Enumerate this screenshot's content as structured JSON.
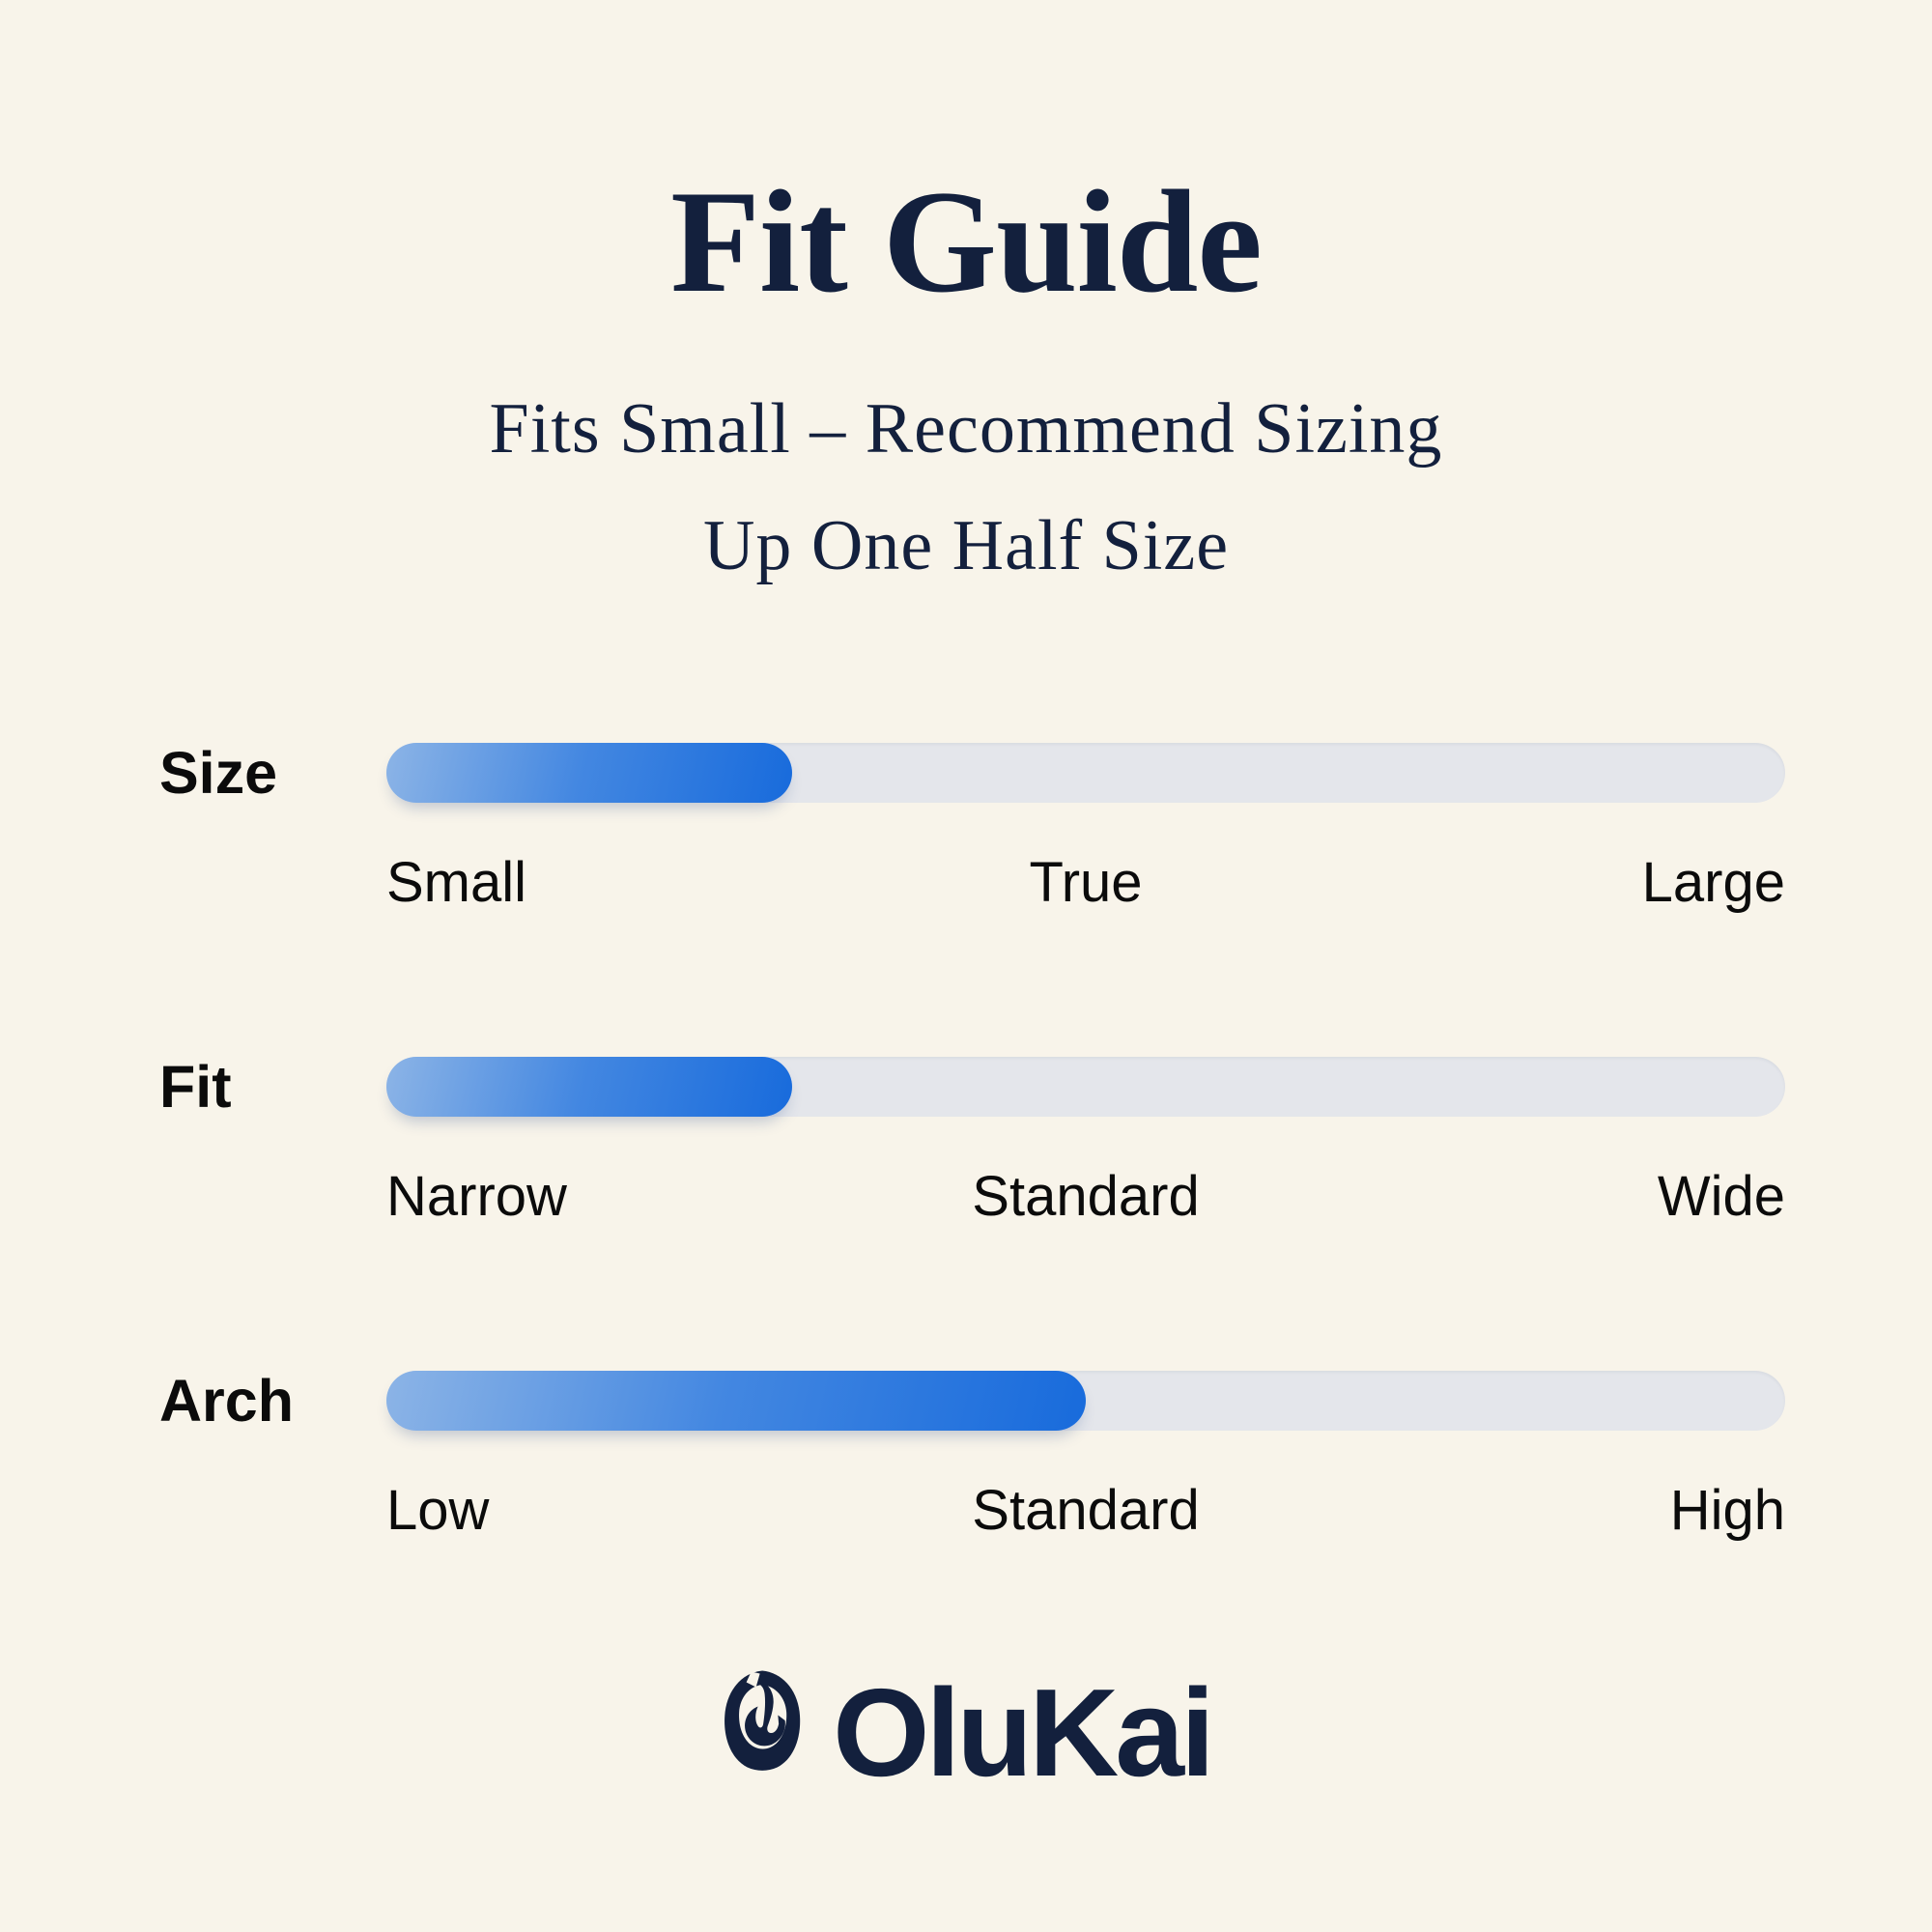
{
  "title": "Fit Guide",
  "subtitle": {
    "line1": "Fits Small – Recommend Sizing",
    "line2": "Up One Half Size"
  },
  "sliders": [
    {
      "label": "Size",
      "fill_percent": 29,
      "scale": {
        "left": "Small",
        "center": "True",
        "right": "Large"
      }
    },
    {
      "label": "Fit",
      "fill_percent": 29,
      "scale": {
        "left": "Narrow",
        "center": "Standard",
        "right": "Wide"
      }
    },
    {
      "label": "Arch",
      "fill_percent": 50,
      "scale": {
        "left": "Low",
        "center": "Standard",
        "right": "High"
      }
    }
  ],
  "logo": {
    "brand": "OluKai",
    "icon": "fish-hook-icon"
  },
  "colors": {
    "background": "#F8F4EA",
    "navy": "#13203D",
    "label_ink": "#0B0B0B",
    "track": "#E4E6EB",
    "fill_gradient_start": "#8CB4E6",
    "fill_gradient_mid": "#4387E1",
    "fill_gradient_end": "#186BDC"
  },
  "chart_data": {
    "type": "bar",
    "title": "Fit Guide",
    "subtitle": "Fits Small – Recommend Sizing Up One Half Size",
    "categories": [
      "Size",
      "Fit",
      "Arch"
    ],
    "values": [
      0.29,
      0.29,
      0.5
    ],
    "value_meaning": "fill fraction of slider track from left end (0) to right end (1)",
    "scales": [
      [
        "Small",
        "True",
        "Large"
      ],
      [
        "Narrow",
        "Standard",
        "Wide"
      ],
      [
        "Low",
        "Standard",
        "High"
      ]
    ],
    "readings": [
      "Size: between Small and True (fits small)",
      "Fit: between Narrow and Standard",
      "Arch: Standard"
    ],
    "legend": "none",
    "grid": false
  }
}
